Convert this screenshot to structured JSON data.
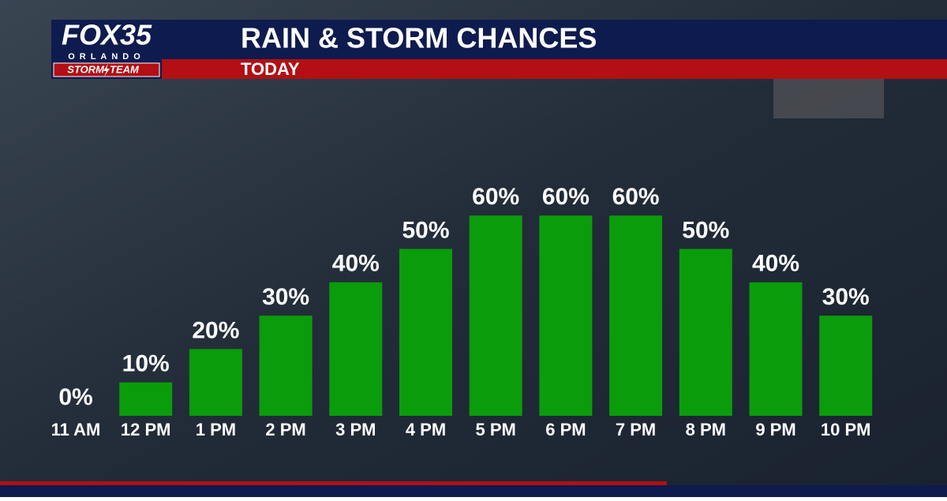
{
  "logo": {
    "name": "FOX35",
    "city": "ORLANDO",
    "team_left": "STORM",
    "team_right": "TEAM"
  },
  "chart_data": {
    "type": "bar",
    "title": "RAIN & STORM CHANCES",
    "subtitle": "TODAY",
    "categories": [
      "11 AM",
      "12 PM",
      "1 PM",
      "2 PM",
      "3 PM",
      "4 PM",
      "5 PM",
      "6 PM",
      "7 PM",
      "8 PM",
      "9 PM",
      "10 PM"
    ],
    "values": [
      0,
      10,
      20,
      30,
      40,
      50,
      60,
      60,
      60,
      50,
      40,
      30
    ],
    "value_labels": [
      "0%",
      "10%",
      "20%",
      "30%",
      "40%",
      "50%",
      "60%",
      "60%",
      "60%",
      "50%",
      "40%",
      "30%"
    ],
    "color": "#0b9c0b"
  }
}
